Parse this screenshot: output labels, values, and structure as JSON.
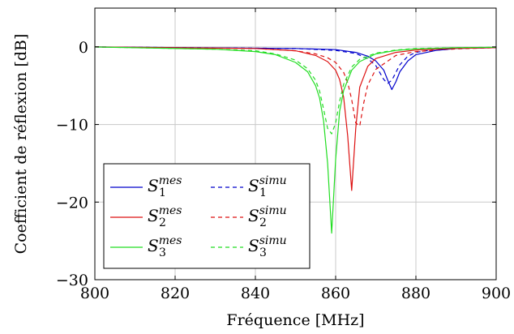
{
  "chart_data": {
    "type": "line",
    "xlabel": "Fréquence [MHz]",
    "ylabel": "Coefficient de réflexion [dB]",
    "xlim": [
      800,
      900
    ],
    "ylim": [
      -30,
      5
    ],
    "xticks": [
      800,
      820,
      840,
      860,
      880,
      900
    ],
    "yticks": [
      -30,
      -20,
      -10,
      0
    ],
    "ytick_labels": [
      "−30",
      "−20",
      "−10",
      "0"
    ],
    "grid": true,
    "legend_position": "bottom-left",
    "legend_columns": 2,
    "series": [
      {
        "name": "S1^mes",
        "label_base": "S",
        "label_sub": "1",
        "label_sup": "mes",
        "color": "#0000cc",
        "dash": "solid",
        "x": [
          800,
          850,
          860,
          865,
          868,
          870,
          872,
          873,
          874,
          875,
          876,
          878,
          880,
          885,
          890,
          900
        ],
        "y": [
          0,
          -0.2,
          -0.35,
          -0.7,
          -1.2,
          -1.8,
          -3.0,
          -4.3,
          -5.5,
          -4.5,
          -3.2,
          -1.8,
          -1.0,
          -0.45,
          -0.2,
          -0.1
        ]
      },
      {
        "name": "S1^simu",
        "label_base": "S",
        "label_sub": "1",
        "label_sup": "simu",
        "color": "#0000cc",
        "dash": "dashed",
        "x": [
          800,
          850,
          860,
          865,
          868,
          870,
          871,
          872,
          873,
          874,
          875,
          876,
          878,
          880,
          885,
          890,
          900
        ],
        "y": [
          0,
          -0.2,
          -0.45,
          -0.85,
          -1.5,
          -2.4,
          -3.3,
          -4.2,
          -4.7,
          -4.3,
          -3.3,
          -2.3,
          -1.2,
          -0.7,
          -0.3,
          -0.15,
          -0.1
        ]
      },
      {
        "name": "S2^mes",
        "label_base": "S",
        "label_sub": "2",
        "label_sup": "mes",
        "color": "#dd1111",
        "dash": "solid",
        "x": [
          800,
          840,
          850,
          855,
          858,
          860,
          861,
          862,
          863,
          864,
          865,
          866,
          868,
          870,
          875,
          880,
          890,
          900
        ],
        "y": [
          0,
          -0.2,
          -0.5,
          -1.1,
          -1.9,
          -3.0,
          -4.2,
          -6.5,
          -11.5,
          -18.5,
          -10.5,
          -5.2,
          -2.5,
          -1.5,
          -0.7,
          -0.4,
          -0.2,
          -0.1
        ]
      },
      {
        "name": "S2^simu",
        "label_base": "S",
        "label_sub": "2",
        "label_sup": "simu",
        "color": "#dd1111",
        "dash": "dashed",
        "x": [
          800,
          840,
          850,
          855,
          858,
          860,
          862,
          863,
          864,
          865,
          866,
          867,
          868,
          870,
          875,
          880,
          890,
          900
        ],
        "y": [
          0,
          -0.2,
          -0.5,
          -0.9,
          -1.4,
          -2.0,
          -3.3,
          -4.6,
          -6.8,
          -9.8,
          -10.2,
          -7.2,
          -4.9,
          -2.9,
          -1.1,
          -0.6,
          -0.25,
          -0.1
        ]
      },
      {
        "name": "S3^mes",
        "label_base": "S",
        "label_sub": "3",
        "label_sup": "mes",
        "color": "#22dd22",
        "dash": "solid",
        "x": [
          800,
          830,
          840,
          845,
          850,
          853,
          855,
          856,
          857,
          858,
          859,
          860,
          861,
          862,
          864,
          866,
          870,
          875,
          880,
          890,
          900
        ],
        "y": [
          0,
          -0.3,
          -0.6,
          -1.0,
          -2.0,
          -3.2,
          -5.0,
          -6.6,
          -9.5,
          -15.0,
          -24.0,
          -14.5,
          -8.3,
          -5.6,
          -3.0,
          -1.9,
          -0.9,
          -0.45,
          -0.25,
          -0.1,
          -0.05
        ]
      },
      {
        "name": "S3^simu",
        "label_base": "S",
        "label_sub": "3",
        "label_sup": "simu",
        "color": "#22dd22",
        "dash": "dashed",
        "x": [
          800,
          830,
          840,
          845,
          850,
          853,
          855,
          856,
          857,
          858,
          859,
          860,
          861,
          862,
          864,
          866,
          870,
          875,
          880,
          890,
          900
        ],
        "y": [
          0,
          -0.3,
          -0.5,
          -0.9,
          -1.7,
          -2.8,
          -4.3,
          -5.7,
          -8.0,
          -10.5,
          -11.2,
          -9.8,
          -7.0,
          -4.8,
          -2.6,
          -1.6,
          -0.8,
          -0.4,
          -0.2,
          -0.1,
          -0.05
        ]
      }
    ]
  }
}
